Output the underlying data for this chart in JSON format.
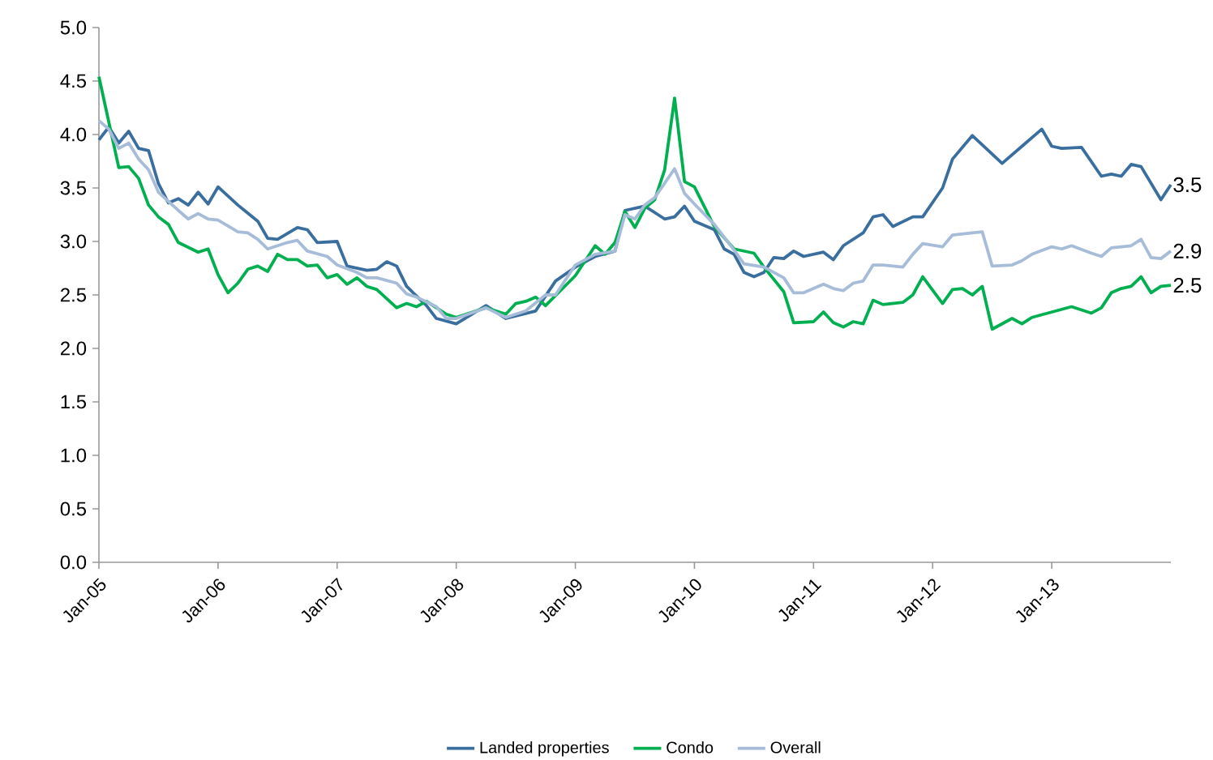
{
  "chart_data": {
    "type": "line",
    "xlim": [
      "2005-01",
      "2014-01"
    ],
    "xticks": [
      {
        "value": "2005-01",
        "label": "Jan-05"
      },
      {
        "value": "2006-01",
        "label": "Jan-06"
      },
      {
        "value": "2007-01",
        "label": "Jan-07"
      },
      {
        "value": "2008-01",
        "label": "Jan-08"
      },
      {
        "value": "2009-01",
        "label": "Jan-09"
      },
      {
        "value": "2010-01",
        "label": "Jan-10"
      },
      {
        "value": "2011-01",
        "label": "Jan-11"
      },
      {
        "value": "2012-01",
        "label": "Jan-12"
      },
      {
        "value": "2013-01",
        "label": "Jan-13"
      }
    ],
    "ylim": [
      0,
      5
    ],
    "yticks": [
      {
        "value": 0,
        "label": "0.0"
      },
      {
        "value": 0.5,
        "label": "0.5"
      },
      {
        "value": 1,
        "label": "1.0"
      },
      {
        "value": 1.5,
        "label": "1.5"
      },
      {
        "value": 2,
        "label": "2.0"
      },
      {
        "value": 2.5,
        "label": "2.5"
      },
      {
        "value": 3,
        "label": "3.0"
      },
      {
        "value": 3.5,
        "label": "3.5"
      },
      {
        "value": 4,
        "label": "4.0"
      },
      {
        "value": 4.5,
        "label": "4.5"
      },
      {
        "value": 5,
        "label": "5.0"
      }
    ],
    "grid": false,
    "legend": "bottom",
    "series": [
      {
        "name": "Landed properties",
        "color": "#3a6e9f",
        "x": [
          "2005-01",
          "2005-02",
          "2005-03",
          "2005-04",
          "2005-05",
          "2005-06",
          "2005-07",
          "2005-08",
          "2005-09",
          "2005-10",
          "2005-11",
          "2005-12",
          "2006-01",
          "2006-03",
          "2006-05",
          "2006-06",
          "2006-07",
          "2006-09",
          "2006-10",
          "2006-11",
          "2007-01",
          "2007-02",
          "2007-04",
          "2007-05",
          "2007-06",
          "2007-07",
          "2007-08",
          "2007-10",
          "2007-11",
          "2008-01",
          "2008-04",
          "2008-06",
          "2008-09",
          "2008-11",
          "2009-01",
          "2009-03",
          "2009-05",
          "2009-06",
          "2009-08",
          "2009-10",
          "2009-11",
          "2009-12",
          "2010-01",
          "2010-03",
          "2010-04",
          "2010-05",
          "2010-06",
          "2010-07",
          "2010-08",
          "2010-09",
          "2010-10",
          "2010-11",
          "2010-12",
          "2011-02",
          "2011-03",
          "2011-04",
          "2011-06",
          "2011-07",
          "2011-08",
          "2011-09",
          "2011-11",
          "2011-12",
          "2012-02",
          "2012-03",
          "2012-05",
          "2012-08",
          "2012-10",
          "2012-12",
          "2013-01",
          "2013-02",
          "2013-04",
          "2013-06",
          "2013-07",
          "2013-08",
          "2013-09",
          "2013-10",
          "2013-12",
          "2014-01"
        ],
        "values": [
          3.95,
          4.07,
          3.92,
          4.03,
          3.87,
          3.85,
          3.54,
          3.36,
          3.4,
          3.34,
          3.46,
          3.35,
          3.51,
          3.34,
          3.19,
          3.03,
          3.02,
          3.13,
          3.11,
          2.99,
          3.0,
          2.77,
          2.73,
          2.74,
          2.81,
          2.77,
          2.58,
          2.4,
          2.28,
          2.23,
          2.4,
          2.28,
          2.35,
          2.63,
          2.76,
          2.86,
          2.91,
          3.29,
          3.33,
          3.21,
          3.23,
          3.33,
          3.19,
          3.11,
          2.93,
          2.88,
          2.71,
          2.67,
          2.71,
          2.85,
          2.84,
          2.91,
          2.86,
          2.9,
          2.83,
          2.96,
          3.08,
          3.23,
          3.25,
          3.14,
          3.23,
          3.23,
          3.5,
          3.77,
          3.99,
          3.73,
          3.89,
          4.05,
          3.89,
          3.87,
          3.88,
          3.61,
          3.63,
          3.61,
          3.72,
          3.7,
          3.39,
          3.53
        ]
      },
      {
        "name": "Condo",
        "color": "#00b050",
        "x": [
          "2005-01",
          "2005-03",
          "2005-04",
          "2005-05",
          "2005-06",
          "2005-07",
          "2005-08",
          "2005-09",
          "2005-11",
          "2005-12",
          "2006-01",
          "2006-02",
          "2006-03",
          "2006-04",
          "2006-05",
          "2006-06",
          "2006-07",
          "2006-08",
          "2006-09",
          "2006-10",
          "2006-11",
          "2006-12",
          "2007-01",
          "2007-02",
          "2007-03",
          "2007-04",
          "2007-05",
          "2007-07",
          "2007-08",
          "2007-09",
          "2007-10",
          "2007-12",
          "2008-01",
          "2008-04",
          "2008-06",
          "2008-07",
          "2008-08",
          "2008-09",
          "2008-10",
          "2009-01",
          "2009-03",
          "2009-04",
          "2009-05",
          "2009-06",
          "2009-07",
          "2009-08",
          "2009-09",
          "2009-10",
          "2009-11",
          "2009-12",
          "2010-01",
          "2010-03",
          "2010-05",
          "2010-07",
          "2010-08",
          "2010-10",
          "2010-11",
          "2011-01",
          "2011-02",
          "2011-03",
          "2011-04",
          "2011-05",
          "2011-06",
          "2011-07",
          "2011-08",
          "2011-10",
          "2011-11",
          "2011-12",
          "2012-02",
          "2012-03",
          "2012-04",
          "2012-05",
          "2012-06",
          "2012-07",
          "2012-09",
          "2012-10",
          "2012-11",
          "2013-01",
          "2013-03",
          "2013-05",
          "2013-06",
          "2013-07",
          "2013-08",
          "2013-09",
          "2013-10",
          "2013-11",
          "2013-12",
          "2014-01"
        ],
        "values": [
          4.54,
          3.69,
          3.7,
          3.59,
          3.34,
          3.23,
          3.16,
          2.99,
          2.9,
          2.93,
          2.69,
          2.52,
          2.61,
          2.74,
          2.77,
          2.72,
          2.88,
          2.83,
          2.83,
          2.77,
          2.78,
          2.66,
          2.69,
          2.6,
          2.66,
          2.58,
          2.55,
          2.38,
          2.42,
          2.39,
          2.44,
          2.32,
          2.29,
          2.38,
          2.32,
          2.42,
          2.44,
          2.48,
          2.4,
          2.68,
          2.96,
          2.88,
          2.99,
          3.28,
          3.13,
          3.31,
          3.39,
          3.67,
          4.34,
          3.56,
          3.51,
          3.14,
          2.93,
          2.89,
          2.76,
          2.53,
          2.24,
          2.25,
          2.34,
          2.24,
          2.2,
          2.25,
          2.23,
          2.45,
          2.41,
          2.43,
          2.5,
          2.67,
          2.42,
          2.55,
          2.56,
          2.5,
          2.58,
          2.18,
          2.28,
          2.23,
          2.29,
          2.34,
          2.39,
          2.33,
          2.38,
          2.52,
          2.56,
          2.58,
          2.67,
          2.52,
          2.58,
          2.59
        ]
      },
      {
        "name": "Overall",
        "color": "#a6bcd8",
        "x": [
          "2005-01",
          "2005-02",
          "2005-03",
          "2005-04",
          "2005-05",
          "2005-06",
          "2005-07",
          "2005-09",
          "2005-10",
          "2005-11",
          "2005-12",
          "2006-01",
          "2006-03",
          "2006-04",
          "2006-05",
          "2006-06",
          "2006-08",
          "2006-09",
          "2006-10",
          "2006-12",
          "2007-01",
          "2007-03",
          "2007-04",
          "2007-05",
          "2007-07",
          "2007-08",
          "2007-09",
          "2007-11",
          "2007-12",
          "2008-01",
          "2008-04",
          "2008-06",
          "2008-08",
          "2008-10",
          "2008-11",
          "2009-01",
          "2009-03",
          "2009-05",
          "2009-06",
          "2009-07",
          "2009-08",
          "2009-09",
          "2009-11",
          "2009-12",
          "2010-01",
          "2010-03",
          "2010-05",
          "2010-06",
          "2010-08",
          "2010-10",
          "2010-11",
          "2010-12",
          "2011-02",
          "2011-03",
          "2011-04",
          "2011-05",
          "2011-06",
          "2011-07",
          "2011-08",
          "2011-10",
          "2011-11",
          "2011-12",
          "2012-02",
          "2012-03",
          "2012-05",
          "2012-06",
          "2012-07",
          "2012-09",
          "2012-10",
          "2012-11",
          "2013-01",
          "2013-02",
          "2013-03",
          "2013-05",
          "2013-06",
          "2013-07",
          "2013-09",
          "2013-10",
          "2013-11",
          "2013-12",
          "2014-01"
        ],
        "values": [
          4.13,
          4.05,
          3.87,
          3.92,
          3.77,
          3.67,
          3.46,
          3.29,
          3.21,
          3.26,
          3.21,
          3.2,
          3.09,
          3.08,
          3.02,
          2.93,
          2.99,
          3.01,
          2.91,
          2.86,
          2.78,
          2.71,
          2.66,
          2.66,
          2.61,
          2.51,
          2.48,
          2.39,
          2.28,
          2.28,
          2.38,
          2.29,
          2.35,
          2.5,
          2.5,
          2.78,
          2.88,
          2.91,
          3.25,
          3.21,
          3.34,
          3.41,
          3.68,
          3.45,
          3.35,
          3.16,
          2.92,
          2.79,
          2.76,
          2.66,
          2.52,
          2.52,
          2.6,
          2.56,
          2.54,
          2.61,
          2.63,
          2.78,
          2.78,
          2.76,
          2.88,
          2.98,
          2.95,
          3.06,
          3.08,
          3.09,
          2.77,
          2.78,
          2.82,
          2.88,
          2.95,
          2.93,
          2.96,
          2.89,
          2.86,
          2.94,
          2.96,
          3.02,
          2.85,
          2.84,
          2.91
        ]
      }
    ],
    "annotations": [
      {
        "text": "3.5",
        "x": "2014-01",
        "y": 3.53
      },
      {
        "text": "2.9",
        "x": "2014-01",
        "y": 2.91
      },
      {
        "text": "2.5",
        "x": "2014-01",
        "y": 2.59
      }
    ]
  }
}
